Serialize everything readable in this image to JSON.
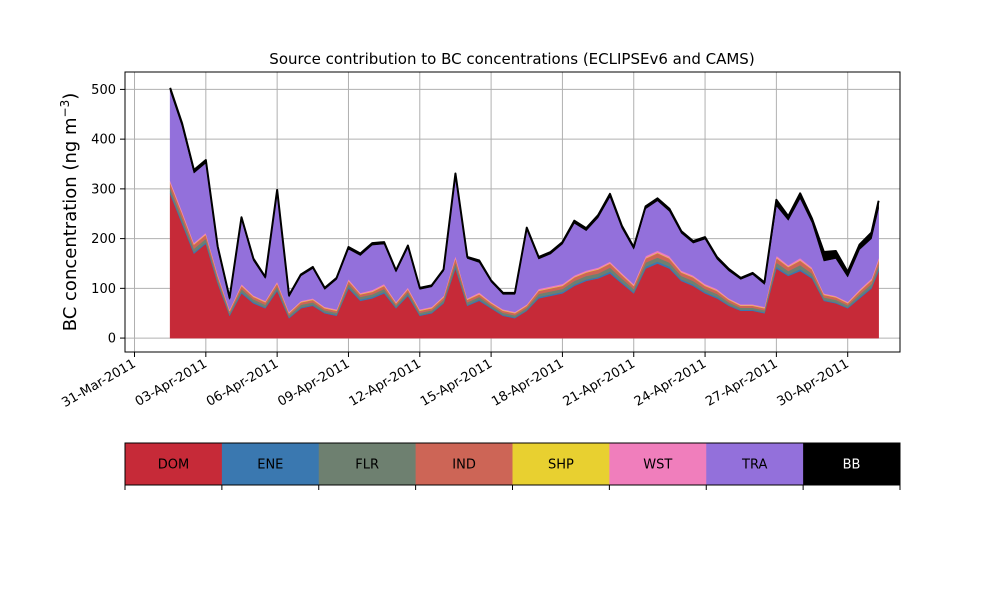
{
  "chart_data": {
    "type": "area",
    "stacked": true,
    "title": "Source contribution to BC concentrations (ECLIPSEv6 and CAMS)",
    "ylabel": "BC concentration (ng m",
    "ylabel_sup": "−3",
    "ylabel_close": ")",
    "ylim": [
      -28,
      535
    ],
    "xlim_days": [
      -0.4,
      32.2
    ],
    "grid": true,
    "x_ticks": [
      {
        "day": 0,
        "label": "31-Mar-2011"
      },
      {
        "day": 3,
        "label": "03-Apr-2011"
      },
      {
        "day": 6,
        "label": "06-Apr-2011"
      },
      {
        "day": 9,
        "label": "09-Apr-2011"
      },
      {
        "day": 12,
        "label": "12-Apr-2011"
      },
      {
        "day": 15,
        "label": "15-Apr-2011"
      },
      {
        "day": 18,
        "label": "18-Apr-2011"
      },
      {
        "day": 21,
        "label": "21-Apr-2011"
      },
      {
        "day": 24,
        "label": "24-Apr-2011"
      },
      {
        "day": 27,
        "label": "27-Apr-2011"
      },
      {
        "day": 30,
        "label": "30-Apr-2011"
      }
    ],
    "y_ticks": [
      0,
      100,
      200,
      300,
      400,
      500
    ],
    "x_days": [
      1.5,
      2.0,
      2.5,
      3.0,
      3.5,
      4.0,
      4.5,
      5.0,
      5.5,
      6.0,
      6.5,
      7.0,
      7.5,
      8.0,
      8.5,
      9.0,
      9.5,
      10.0,
      10.5,
      11.0,
      11.5,
      12.0,
      12.5,
      13.0,
      13.5,
      14.0,
      14.5,
      15.0,
      15.5,
      16.0,
      16.5,
      17.0,
      17.5,
      18.0,
      18.5,
      19.0,
      19.5,
      20.0,
      20.5,
      21.0,
      21.5,
      22.0,
      22.5,
      23.0,
      23.5,
      24.0,
      24.5,
      25.0,
      25.5,
      26.0,
      26.5,
      27.0,
      27.5,
      28.0,
      28.5,
      29.0,
      29.5,
      30.0,
      30.5,
      31.0,
      31.3
    ],
    "series": [
      {
        "name": "DOM",
        "color": "#c62a38",
        "values": [
          290,
          230,
          170,
          190,
          110,
          45,
          90,
          70,
          60,
          95,
          40,
          60,
          65,
          50,
          45,
          100,
          75,
          80,
          90,
          60,
          85,
          45,
          50,
          70,
          140,
          65,
          75,
          60,
          45,
          40,
          55,
          80,
          85,
          90,
          105,
          115,
          120,
          130,
          110,
          90,
          140,
          150,
          140,
          115,
          105,
          90,
          80,
          65,
          55,
          55,
          50,
          140,
          125,
          135,
          120,
          75,
          70,
          60,
          80,
          100,
          135
        ]
      },
      {
        "name": "ENE",
        "color": "#3a78b0",
        "values": [
          4,
          4,
          3,
          3,
          3,
          2,
          3,
          3,
          2,
          3,
          2,
          2,
          2,
          2,
          2,
          3,
          3,
          3,
          3,
          2,
          3,
          2,
          2,
          2,
          4,
          2,
          3,
          2,
          2,
          2,
          2,
          3,
          3,
          3,
          3,
          3,
          3,
          4,
          3,
          3,
          4,
          4,
          4,
          3,
          3,
          3,
          3,
          2,
          2,
          2,
          2,
          4,
          3,
          4,
          3,
          2,
          2,
          2,
          3,
          3,
          4
        ]
      },
      {
        "name": "FLR",
        "color": "#6e8070",
        "values": [
          8,
          8,
          7,
          7,
          6,
          4,
          6,
          5,
          5,
          6,
          4,
          5,
          5,
          4,
          4,
          6,
          5,
          5,
          6,
          4,
          5,
          4,
          4,
          5,
          8,
          5,
          5,
          4,
          4,
          4,
          4,
          6,
          6,
          6,
          7,
          7,
          7,
          8,
          7,
          6,
          8,
          8,
          8,
          7,
          7,
          6,
          6,
          5,
          4,
          4,
          4,
          8,
          7,
          8,
          7,
          5,
          5,
          4,
          5,
          6,
          8
        ]
      },
      {
        "name": "IND",
        "color": "#cd6556",
        "values": [
          10,
          9,
          8,
          8,
          6,
          4,
          6,
          5,
          5,
          6,
          4,
          5,
          5,
          4,
          4,
          6,
          5,
          5,
          6,
          4,
          5,
          4,
          4,
          5,
          9,
          5,
          5,
          4,
          4,
          4,
          4,
          6,
          6,
          6,
          7,
          7,
          8,
          8,
          7,
          6,
          8,
          9,
          8,
          7,
          7,
          6,
          6,
          5,
          4,
          4,
          4,
          9,
          8,
          9,
          8,
          5,
          5,
          4,
          6,
          7,
          9
        ]
      },
      {
        "name": "SHP",
        "color": "#e8d030",
        "values": [
          1,
          1,
          1,
          1,
          1,
          1,
          1,
          1,
          1,
          1,
          1,
          1,
          1,
          1,
          1,
          1,
          1,
          1,
          1,
          1,
          1,
          1,
          1,
          1,
          1,
          1,
          1,
          1,
          1,
          1,
          1,
          1,
          1,
          1,
          1,
          1,
          1,
          1,
          1,
          1,
          1,
          1,
          1,
          1,
          1,
          1,
          1,
          1,
          1,
          1,
          1,
          1,
          1,
          1,
          1,
          1,
          1,
          1,
          1,
          1,
          1
        ]
      },
      {
        "name": "WST",
        "color": "#f07ebc",
        "values": [
          4,
          4,
          3,
          3,
          3,
          2,
          3,
          2,
          2,
          3,
          2,
          2,
          2,
          2,
          2,
          3,
          2,
          3,
          3,
          2,
          3,
          2,
          2,
          2,
          4,
          2,
          3,
          2,
          2,
          2,
          2,
          3,
          3,
          3,
          3,
          3,
          3,
          3,
          3,
          3,
          4,
          4,
          4,
          3,
          3,
          3,
          3,
          2,
          2,
          2,
          2,
          4,
          3,
          4,
          3,
          2,
          2,
          2,
          3,
          3,
          4
        ]
      },
      {
        "name": "TRA",
        "color": "#9370db",
        "values": [
          180,
          170,
          140,
          140,
          50,
          20,
          130,
          70,
          45,
          180,
          30,
          50,
          60,
          35,
          60,
          60,
          75,
          90,
          80,
          60,
          80,
          40,
          40,
          50,
          160,
          80,
          60,
          40,
          30,
          35,
          150,
          60,
          65,
          80,
          105,
          80,
          100,
          130,
          90,
          70,
          95,
          100,
          90,
          75,
          65,
          90,
          60,
          55,
          50,
          60,
          45,
          100,
          90,
          120,
          90,
          65,
          75,
          50,
          80,
          80,
          100
        ]
      },
      {
        "name": "BB",
        "color": "#000000",
        "values": [
          6,
          6,
          6,
          6,
          5,
          3,
          4,
          4,
          3,
          4,
          3,
          3,
          3,
          3,
          3,
          4,
          4,
          4,
          4,
          3,
          4,
          3,
          3,
          3,
          5,
          3,
          4,
          3,
          3,
          3,
          4,
          4,
          4,
          4,
          5,
          5,
          5,
          6,
          5,
          4,
          5,
          5,
          5,
          4,
          4,
          4,
          4,
          4,
          3,
          3,
          4,
          12,
          8,
          10,
          8,
          18,
          15,
          10,
          10,
          12,
          15
        ]
      }
    ]
  }
}
